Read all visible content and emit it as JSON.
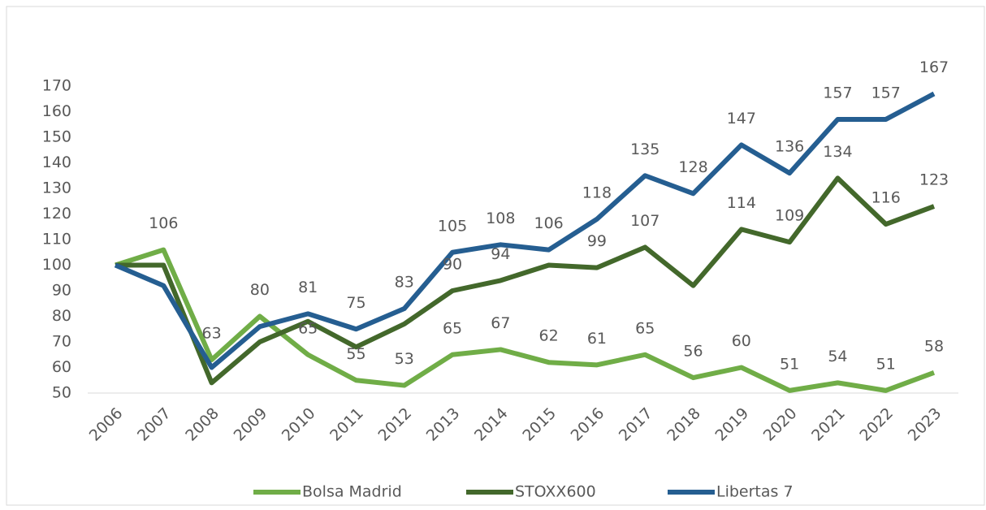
{
  "chart_data": {
    "type": "line",
    "categories": [
      "2006",
      "2007",
      "2008",
      "2009",
      "2010",
      "2011",
      "2012",
      "2013",
      "2014",
      "2015",
      "2016",
      "2017",
      "2018",
      "2019",
      "2020",
      "2021",
      "2022",
      "2023"
    ],
    "series": [
      {
        "name": "Bolsa Madrid",
        "color": "#70ad47",
        "values": [
          100,
          106,
          63,
          80,
          65,
          55,
          53,
          65,
          67,
          62,
          61,
          65,
          56,
          60,
          51,
          54,
          51,
          58
        ],
        "value_labels": [
          null,
          "106",
          "63",
          "80",
          "65",
          "55",
          "53",
          "65",
          "67",
          "62",
          "61",
          "65",
          "56",
          "60",
          "51",
          "54",
          "51",
          "58"
        ]
      },
      {
        "name": "STOXX600",
        "color": "#43682b",
        "values": [
          100,
          100,
          54,
          70,
          78,
          68,
          77,
          90,
          94,
          100,
          99,
          107,
          92,
          114,
          109,
          134,
          116,
          123
        ],
        "value_labels": [
          null,
          null,
          null,
          null,
          null,
          null,
          null,
          "90",
          "94",
          null,
          "99",
          "107",
          null,
          "114",
          "109",
          "134",
          "116",
          "123"
        ]
      },
      {
        "name": "Libertas 7",
        "color": "#255e91",
        "values": [
          100,
          92,
          60,
          76,
          81,
          75,
          83,
          105,
          108,
          106,
          118,
          135,
          128,
          147,
          136,
          157,
          157,
          167
        ],
        "value_labels": [
          null,
          null,
          null,
          null,
          "81",
          "75",
          "83",
          "105",
          "108",
          "106",
          "118",
          "135",
          "128",
          "147",
          "136",
          "157",
          "157",
          "167"
        ]
      }
    ],
    "ylim": [
      50,
      170
    ],
    "yticks": [
      50,
      60,
      70,
      80,
      90,
      100,
      110,
      120,
      130,
      140,
      150,
      160,
      170
    ],
    "grid": false,
    "legend": "bottom"
  }
}
